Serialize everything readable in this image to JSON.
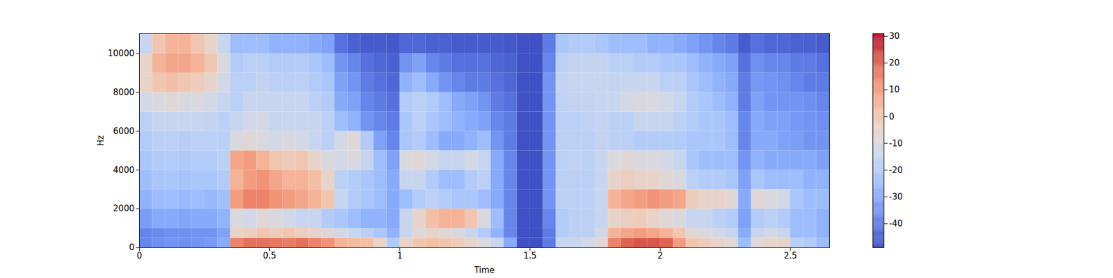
{
  "chart_data": {
    "type": "heatmap",
    "xlabel": "Time",
    "ylabel": "Hz",
    "xlim": [
      0,
      2.65
    ],
    "ylim": [
      0,
      11025
    ],
    "xticks": [
      0,
      0.5,
      1,
      1.5,
      2,
      2.5
    ],
    "yticks": [
      0,
      2000,
      4000,
      6000,
      8000,
      10000
    ],
    "x_edges": [
      0,
      0.05,
      0.1,
      0.15,
      0.2,
      0.25,
      0.3,
      0.35,
      0.4,
      0.45,
      0.5,
      0.55,
      0.6,
      0.65,
      0.7,
      0.75,
      0.8,
      0.85,
      0.9,
      0.95,
      1.0,
      1.05,
      1.1,
      1.15,
      1.2,
      1.25,
      1.3,
      1.35,
      1.4,
      1.45,
      1.5,
      1.55,
      1.6,
      1.65,
      1.7,
      1.75,
      1.8,
      1.85,
      1.9,
      1.95,
      2.0,
      2.05,
      2.1,
      2.15,
      2.2,
      2.25,
      2.3,
      2.35,
      2.4,
      2.45,
      2.5,
      2.55,
      2.6,
      2.65
    ],
    "y_edges": [
      0,
      500,
      1000,
      2000,
      3000,
      4000,
      5000,
      6000,
      7000,
      8000,
      9000,
      10000,
      11025
    ],
    "cells": [
      [
        -38,
        -36,
        -35,
        -36,
        -35,
        -34,
        -30,
        15,
        18,
        18,
        17,
        16,
        18,
        15,
        12,
        5,
        3,
        2,
        -5,
        -20,
        -5,
        0,
        2,
        0,
        -2,
        -5,
        -10,
        -15,
        -30,
        -48,
        -48,
        -40,
        -15,
        -15,
        -12,
        -8,
        15,
        20,
        22,
        22,
        20,
        10,
        0,
        -2,
        -5,
        -8,
        -25,
        -8,
        -5,
        -5,
        -18,
        -20,
        -25
      ],
      [
        -38,
        -37,
        -36,
        -36,
        -35,
        -35,
        -32,
        -5,
        -3,
        0,
        -2,
        0,
        -3,
        -5,
        -8,
        -12,
        -15,
        -18,
        -22,
        -28,
        -15,
        -8,
        -5,
        -8,
        -10,
        -15,
        -20,
        -28,
        -38,
        -48,
        -48,
        -40,
        -20,
        -18,
        -18,
        -12,
        5,
        8,
        10,
        8,
        5,
        0,
        -8,
        -10,
        -12,
        -15,
        -30,
        -15,
        -12,
        -15,
        -25,
        -25,
        -28
      ],
      [
        -33,
        -30,
        -30,
        -31,
        -30,
        -30,
        -28,
        -10,
        -12,
        -8,
        -10,
        -12,
        -15,
        -15,
        -20,
        -22,
        -25,
        -28,
        -28,
        -30,
        -15,
        -5,
        2,
        5,
        5,
        0,
        -10,
        -25,
        -38,
        -48,
        -48,
        -38,
        -20,
        -18,
        -18,
        -15,
        -5,
        -3,
        -2,
        -5,
        -8,
        -10,
        -15,
        -15,
        -18,
        -20,
        -32,
        -20,
        -18,
        -20,
        -25,
        -25,
        -28
      ],
      [
        -28,
        -25,
        -25,
        -26,
        -25,
        -26,
        -24,
        10,
        15,
        15,
        12,
        10,
        8,
        5,
        0,
        -15,
        -20,
        -22,
        -25,
        -30,
        -25,
        -20,
        -18,
        -20,
        -22,
        -22,
        -25,
        -30,
        -38,
        -48,
        -48,
        -35,
        -18,
        -18,
        -18,
        -15,
        5,
        8,
        10,
        12,
        10,
        8,
        -2,
        -5,
        -5,
        -8,
        -30,
        -8,
        -10,
        -12,
        -22,
        -25,
        -25
      ],
      [
        -25,
        -22,
        -22,
        -23,
        -22,
        -22,
        -20,
        5,
        10,
        12,
        8,
        5,
        5,
        2,
        -5,
        -18,
        -20,
        -22,
        -25,
        -30,
        -15,
        -15,
        -20,
        -25,
        -25,
        -20,
        -18,
        -30,
        -38,
        -48,
        -48,
        -35,
        -18,
        -18,
        -18,
        -15,
        -5,
        -3,
        -5,
        -5,
        -8,
        -10,
        -18,
        -20,
        -20,
        -22,
        -32,
        -22,
        -25,
        -25,
        -25,
        -28,
        -28
      ],
      [
        -22,
        -20,
        -20,
        -21,
        -20,
        -20,
        -18,
        8,
        10,
        5,
        0,
        -2,
        0,
        -5,
        -10,
        -12,
        -10,
        -15,
        -25,
        -32,
        -10,
        -8,
        -12,
        -15,
        -15,
        -12,
        -15,
        -30,
        -38,
        -48,
        -48,
        -35,
        -18,
        -17,
        -18,
        -15,
        -10,
        -8,
        -10,
        -10,
        -12,
        -15,
        -22,
        -25,
        -25,
        -25,
        -35,
        -28,
        -30,
        -30,
        -30,
        -30,
        -32
      ],
      [
        -20,
        -18,
        -18,
        -19,
        -18,
        -18,
        -18,
        -10,
        -8,
        -10,
        -12,
        -10,
        -12,
        -15,
        -18,
        -12,
        -8,
        -20,
        -32,
        -38,
        -22,
        -20,
        -25,
        -30,
        -30,
        -28,
        -25,
        -35,
        -40,
        -48,
        -48,
        -35,
        -18,
        -18,
        -18,
        -16,
        -18,
        -18,
        -20,
        -20,
        -20,
        -20,
        -22,
        -22,
        -22,
        -25,
        -38,
        -30,
        -30,
        -32,
        -33,
        -35,
        -35
      ],
      [
        -18,
        -15,
        -15,
        -15,
        -15,
        -16,
        -18,
        -15,
        -12,
        -12,
        -15,
        -15,
        -15,
        -15,
        -18,
        -25,
        -28,
        -35,
        -38,
        -40,
        -22,
        -18,
        -22,
        -25,
        -28,
        -30,
        -32,
        -38,
        -40,
        -48,
        -48,
        -35,
        -18,
        -18,
        -17,
        -16,
        -18,
        -18,
        -15,
        -15,
        -15,
        -18,
        -20,
        -22,
        -22,
        -25,
        -38,
        -30,
        -32,
        -32,
        -34,
        -35,
        -36
      ],
      [
        -12,
        -10,
        -8,
        -10,
        -10,
        -12,
        -15,
        -18,
        -15,
        -15,
        -15,
        -15,
        -15,
        -18,
        -20,
        -30,
        -32,
        -38,
        -40,
        -42,
        -20,
        -18,
        -20,
        -25,
        -30,
        -32,
        -35,
        -40,
        -42,
        -48,
        -48,
        -35,
        -17,
        -16,
        -16,
        -15,
        -15,
        -12,
        -10,
        -10,
        -12,
        -15,
        -20,
        -22,
        -25,
        -28,
        -40,
        -32,
        -35,
        -35,
        -35,
        -36,
        -38
      ],
      [
        -5,
        0,
        2,
        0,
        -2,
        -5,
        -12,
        -18,
        -18,
        -16,
        -18,
        -18,
        -18,
        -20,
        -22,
        -32,
        -35,
        -40,
        -42,
        -44,
        -28,
        -25,
        -30,
        -35,
        -38,
        -40,
        -40,
        -42,
        -44,
        -48,
        -48,
        -35,
        -16,
        -15,
        -15,
        -15,
        -16,
        -15,
        -15,
        -15,
        -18,
        -18,
        -22,
        -25,
        -28,
        -30,
        -40,
        -34,
        -35,
        -36,
        -38,
        -40,
        -40
      ],
      [
        -5,
        5,
        8,
        8,
        5,
        0,
        -10,
        -20,
        -18,
        -18,
        -20,
        -20,
        -20,
        -22,
        -25,
        -35,
        -38,
        -42,
        -44,
        -45,
        -35,
        -32,
        -38,
        -40,
        -42,
        -42,
        -42,
        -44,
        -45,
        -48,
        -48,
        -38,
        -18,
        -16,
        -16,
        -16,
        -18,
        -18,
        -20,
        -20,
        -22,
        -22,
        -25,
        -28,
        -30,
        -32,
        -42,
        -36,
        -38,
        -38,
        -40,
        -40,
        -42
      ],
      [
        -15,
        0,
        5,
        5,
        0,
        -5,
        -15,
        -25,
        -25,
        -25,
        -28,
        -28,
        -28,
        -30,
        -32,
        -42,
        -45,
        -46,
        -46,
        -47,
        -44,
        -44,
        -45,
        -45,
        -46,
        -46,
        -46,
        -46,
        -47,
        -48,
        -48,
        -40,
        -22,
        -20,
        -20,
        -22,
        -25,
        -25,
        -25,
        -28,
        -28,
        -30,
        -32,
        -35,
        -38,
        -40,
        -46,
        -42,
        -44,
        -44,
        -45,
        -45,
        -46
      ]
    ],
    "colorbar": {
      "range": [
        -49,
        31
      ],
      "ticks": [
        -40,
        -30,
        -20,
        -10,
        0,
        10,
        20,
        30
      ]
    }
  }
}
